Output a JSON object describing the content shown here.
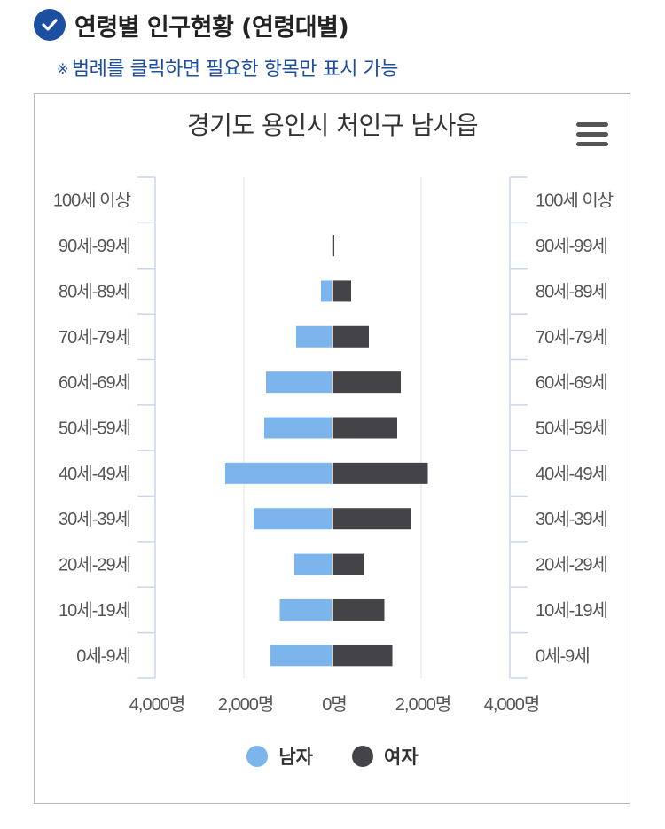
{
  "header": {
    "title": "연령별 인구현황 (연령대별)"
  },
  "note": {
    "mark": "※",
    "text": "범례를 클릭하면 필요한 항목만 표시 가능"
  },
  "colors": {
    "male": "#7cb5ec",
    "female": "#434348",
    "accent": "#1d4fa0"
  },
  "chart_data": {
    "type": "bar",
    "orientation": "horizontal-population-pyramid",
    "title": "경기도 용인시 처인구 남사읍",
    "categories": [
      "100세 이상",
      "90세-99세",
      "80세-89세",
      "70세-79세",
      "60세-69세",
      "50세-59세",
      "40세-49세",
      "30세-39세",
      "20세-29세",
      "10세-19세",
      "0세-9세"
    ],
    "series": [
      {
        "name": "남자",
        "values": [
          0,
          0,
          260,
          820,
          1500,
          1540,
          2420,
          1780,
          860,
          1190,
          1410
        ]
      },
      {
        "name": "여자",
        "values": [
          0,
          40,
          420,
          820,
          1540,
          1460,
          2150,
          1780,
          700,
          1170,
          1350
        ]
      }
    ],
    "xlim": [
      -4000,
      4000
    ],
    "x_ticks": [
      {
        "value": -4000,
        "label": "4,000명"
      },
      {
        "value": -2000,
        "label": "2,000명"
      },
      {
        "value": 0,
        "label": "0명"
      },
      {
        "value": 2000,
        "label": "2,000명"
      },
      {
        "value": 4000,
        "label": "4,000명"
      }
    ],
    "grid": "vertical",
    "legend_position": "bottom-center"
  }
}
